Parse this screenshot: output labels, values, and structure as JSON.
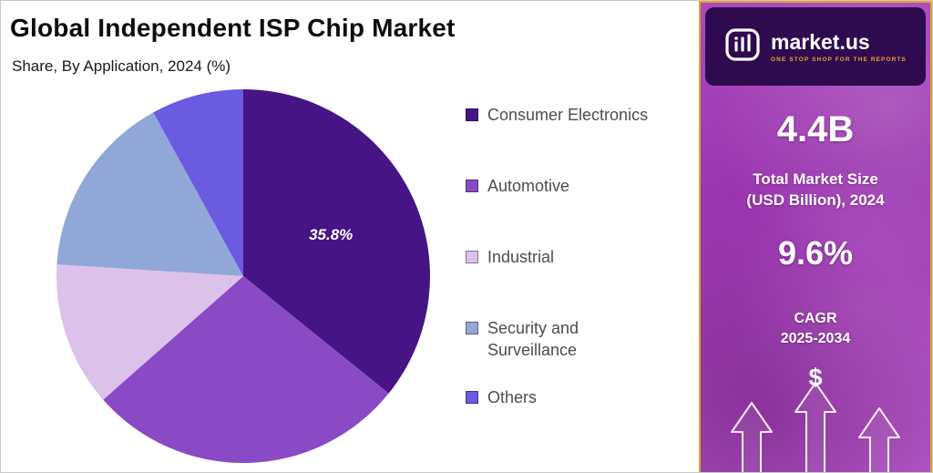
{
  "chart_data": {
    "type": "pie",
    "title": "Global Independent ISP Chip Market",
    "subtitle": "Share, By Application, 2024 (%)",
    "unit": "%",
    "legend_position": "right",
    "start_angle_deg": 0,
    "slices": [
      {
        "label": "Consumer Electronics",
        "value": 35.8,
        "color": "#471486",
        "data_label": "35.8%"
      },
      {
        "label": "Automotive",
        "value": 27.7,
        "color": "#8A4AC6",
        "data_label": ""
      },
      {
        "label": "Industrial",
        "value": 12.5,
        "color": "#DCC2EA",
        "data_label": ""
      },
      {
        "label": "Security and Surveillance",
        "value": 16.0,
        "color": "#91A7D8",
        "data_label": ""
      },
      {
        "label": "Others",
        "value": 8.0,
        "color": "#6A5BE0",
        "data_label": ""
      }
    ]
  },
  "side_panel": {
    "brand_name": "market.us",
    "brand_tagline": "ONE STOP SHOP FOR THE REPORTS",
    "market_size_value": "4.4B",
    "market_size_label": [
      "Total Market Size",
      "(USD Billion), 2024"
    ],
    "cagr_value": "9.6%",
    "cagr_label": [
      "CAGR",
      "2025-2034"
    ],
    "currency_symbol": "$",
    "accent_border_color": "#DFA32E",
    "logo_background": "#2D0B4E",
    "tagline_color": "#F0A32F"
  }
}
